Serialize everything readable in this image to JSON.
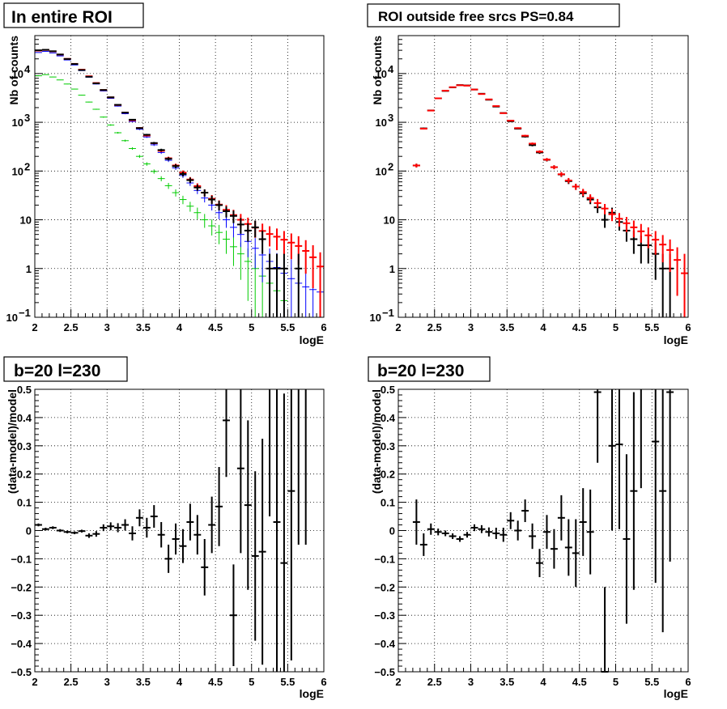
{
  "chart_data": [
    {
      "type": "scatter",
      "title": "In entire ROI",
      "xlabel": "logE",
      "ylabel": "Nb of counts",
      "xlim": [
        2,
        6
      ],
      "ylim": [
        0.1,
        60000
      ],
      "yscale": "log",
      "grid": true,
      "xticks": [
        "2",
        "2.5",
        "3",
        "3.5",
        "4",
        "4.5",
        "5",
        "5.5",
        "6"
      ],
      "yticks": [
        {
          "v": 0.1,
          "base": "10",
          "exp": "−1"
        },
        {
          "v": 1,
          "base": "1",
          "exp": ""
        },
        {
          "v": 10,
          "base": "10",
          "exp": ""
        },
        {
          "v": 100,
          "base": "10",
          "exp": "2"
        },
        {
          "v": 1000,
          "base": "10",
          "exp": "3"
        },
        {
          "v": 10000,
          "base": "10",
          "exp": "4"
        }
      ],
      "series": [
        {
          "color": "#00cc00",
          "x": [
            2.05,
            2.15,
            2.25,
            2.35,
            2.45,
            2.55,
            2.65,
            2.75,
            2.85,
            2.95,
            3.05,
            3.15,
            3.25,
            3.35,
            3.45,
            3.55,
            3.65,
            3.75,
            3.85,
            3.95,
            4.05,
            4.15,
            4.25,
            4.35,
            4.45,
            4.55,
            4.65,
            4.75,
            4.85,
            4.95,
            5.05,
            5.15,
            5.25,
            5.35,
            5.45
          ],
          "y": [
            9000,
            9500,
            8500,
            7400,
            6100,
            4800,
            3600,
            2600,
            1850,
            1280,
            880,
            610,
            420,
            290,
            200,
            140,
            98,
            70,
            50,
            36,
            26,
            19,
            14,
            10,
            7.5,
            5.5,
            4,
            2.8,
            2,
            1.4,
            1,
            0.7,
            0.5,
            0.35,
            0.22
          ]
        },
        {
          "color": "#0000ff",
          "x": [
            2.05,
            2.15,
            2.25,
            2.35,
            2.45,
            2.55,
            2.65,
            2.75,
            2.85,
            2.95,
            3.05,
            3.15,
            3.25,
            3.35,
            3.45,
            3.55,
            3.65,
            3.75,
            3.85,
            3.95,
            4.05,
            4.15,
            4.25,
            4.35,
            4.45,
            4.55,
            4.65,
            4.75,
            4.85,
            4.95,
            5.05,
            5.15,
            5.25,
            5.35,
            5.45,
            5.55,
            5.65,
            5.75,
            5.85,
            5.95
          ],
          "y": [
            27000,
            28500,
            26500,
            23000,
            19000,
            15000,
            11500,
            8400,
            6100,
            4400,
            3100,
            2150,
            1500,
            1040,
            720,
            500,
            345,
            240,
            166,
            116,
            81,
            57,
            40,
            28,
            20,
            14,
            10,
            7,
            5,
            3.6,
            2.6,
            1.9,
            1.4,
            1.05,
            0.8,
            0.62,
            0.5,
            0.42,
            0.37,
            0.33
          ]
        },
        {
          "color": "#ff0000",
          "x": [
            2.05,
            2.15,
            2.25,
            2.35,
            2.45,
            2.55,
            2.65,
            2.75,
            2.85,
            2.95,
            3.05,
            3.15,
            3.25,
            3.35,
            3.45,
            3.55,
            3.65,
            3.75,
            3.85,
            3.95,
            4.05,
            4.15,
            4.25,
            4.35,
            4.45,
            4.55,
            4.65,
            4.75,
            4.85,
            4.95,
            5.05,
            5.15,
            5.25,
            5.35,
            5.45,
            5.55,
            5.65,
            5.75,
            5.85,
            5.95
          ],
          "y": [
            29500,
            30500,
            28500,
            24500,
            20000,
            15800,
            12000,
            8800,
            6400,
            4600,
            3250,
            2260,
            1580,
            1100,
            765,
            535,
            372,
            260,
            183,
            130,
            93,
            67,
            49,
            36,
            27,
            20.5,
            16,
            12.5,
            10,
            8.2,
            6.9,
            5.9,
            5.1,
            4.5,
            3.9,
            3.4,
            2.9,
            2.3,
            1.7,
            1.1
          ]
        },
        {
          "color": "#000000",
          "x": [
            2.05,
            2.15,
            2.25,
            2.35,
            2.45,
            2.55,
            2.65,
            2.75,
            2.85,
            2.95,
            3.05,
            3.15,
            3.25,
            3.35,
            3.45,
            3.55,
            3.65,
            3.75,
            3.85,
            3.95,
            4.05,
            4.15,
            4.25,
            4.35,
            4.45,
            4.55,
            4.65,
            4.75,
            4.85,
            4.95,
            5.05,
            5.15,
            5.25,
            5.35,
            5.45,
            5.65
          ],
          "y": [
            30000,
            30700,
            28700,
            24600,
            19900,
            15700,
            11800,
            8600,
            6300,
            4600,
            3250,
            2280,
            1580,
            1130,
            760,
            555,
            375,
            270,
            178,
            126,
            87,
            65,
            46,
            36,
            26,
            20,
            15,
            12,
            8,
            6,
            7,
            4,
            1,
            1,
            1,
            1
          ]
        }
      ]
    },
    {
      "type": "scatter",
      "title": "ROI outside free srcs PS=0.84",
      "xlabel": "logE",
      "ylabel": "Nb of counts",
      "xlim": [
        2,
        6
      ],
      "ylim": [
        0.1,
        60000
      ],
      "yscale": "log",
      "grid": true,
      "xticks": [
        "2",
        "2.5",
        "3",
        "3.5",
        "4",
        "4.5",
        "5",
        "5.5",
        "6"
      ],
      "yticks": [
        {
          "v": 0.1,
          "base": "10",
          "exp": "−1"
        },
        {
          "v": 1,
          "base": "1",
          "exp": ""
        },
        {
          "v": 10,
          "base": "10",
          "exp": ""
        },
        {
          "v": 100,
          "base": "10",
          "exp": "2"
        },
        {
          "v": 1000,
          "base": "10",
          "exp": "3"
        },
        {
          "v": 10000,
          "base": "10",
          "exp": "4"
        }
      ],
      "series": [
        {
          "color": "#000000",
          "x": [
            2.25,
            2.35,
            2.45,
            2.55,
            2.65,
            2.75,
            2.85,
            2.95,
            3.05,
            3.15,
            3.25,
            3.35,
            3.45,
            3.55,
            3.65,
            3.75,
            3.85,
            3.95,
            4.05,
            4.15,
            4.25,
            4.35,
            4.45,
            4.55,
            4.65,
            4.75,
            4.85,
            4.95,
            5.05,
            5.15,
            5.25,
            5.35,
            5.45,
            5.55,
            5.65,
            5.75
          ],
          "y": [
            130,
            750,
            1750,
            3100,
            4400,
            5200,
            5800,
            5700,
            4700,
            3850,
            2900,
            2100,
            1550,
            1050,
            740,
            510,
            340,
            240,
            170,
            120,
            85,
            62,
            48,
            35,
            26,
            18,
            10,
            14,
            9,
            6,
            4,
            3,
            3,
            2,
            1,
            1
          ]
        },
        {
          "color": "#ff0000",
          "x": [
            2.25,
            2.35,
            2.45,
            2.55,
            2.65,
            2.75,
            2.85,
            2.95,
            3.05,
            3.15,
            3.25,
            3.35,
            3.45,
            3.55,
            3.65,
            3.75,
            3.85,
            3.95,
            4.05,
            4.15,
            4.25,
            4.35,
            4.45,
            4.55,
            4.65,
            4.75,
            4.85,
            4.95,
            5.05,
            5.15,
            5.25,
            5.35,
            5.45,
            5.55,
            5.65,
            5.75,
            5.85,
            5.95
          ],
          "y": [
            130,
            740,
            1740,
            3100,
            4450,
            5250,
            5750,
            5650,
            4700,
            3800,
            2950,
            2150,
            1540,
            1080,
            760,
            530,
            365,
            250,
            172,
            120,
            86,
            64,
            48,
            37,
            28,
            22,
            17,
            13,
            10.5,
            8.5,
            7,
            5.8,
            4.8,
            3.9,
            3.1,
            2.4,
            1.5,
            0.8
          ]
        }
      ]
    },
    {
      "type": "scatter",
      "title": "b=20 l=230",
      "xlabel": "logE",
      "ylabel": "(data-model)/model",
      "xlim": [
        2,
        6
      ],
      "ylim": [
        -0.5,
        0.5
      ],
      "grid": true,
      "xticks": [
        "2",
        "2.5",
        "3",
        "3.5",
        "4",
        "4.5",
        "5",
        "5.5",
        "6"
      ],
      "yticks": [
        "−0.5",
        "−0.4",
        "−0.3",
        "−0.2",
        "−0.1",
        "0",
        "0.1",
        "0.2",
        "0.3",
        "0.4",
        "0.5"
      ],
      "series": [
        {
          "color": "#000000",
          "x": [
            2.05,
            2.15,
            2.25,
            2.35,
            2.45,
            2.55,
            2.65,
            2.75,
            2.85,
            2.95,
            3.05,
            3.15,
            3.25,
            3.35,
            3.45,
            3.55,
            3.65,
            3.75,
            3.85,
            3.95,
            4.05,
            4.15,
            4.25,
            4.35,
            4.45,
            4.55,
            4.65,
            4.75,
            4.85,
            4.95,
            5.05,
            5.15,
            5.25,
            5.35,
            5.45,
            5.55,
            5.65,
            5.75
          ],
          "y": [
            0.02,
            0.005,
            0.01,
            0.0,
            -0.005,
            -0.008,
            -0.002,
            -0.018,
            -0.012,
            0.01,
            0.015,
            0.01,
            0.02,
            -0.01,
            0.045,
            0.01,
            0.05,
            -0.015,
            -0.1,
            -0.03,
            -0.055,
            0.03,
            -0.015,
            -0.13,
            0.02,
            0.085,
            0.39,
            -0.3,
            0.22,
            0.09,
            -0.09,
            -0.075,
            0.55,
            0.03,
            -0.115,
            0.14,
            0.55,
            0.55
          ],
          "err": [
            0.005,
            0.005,
            0.005,
            0.005,
            0.005,
            0.005,
            0.005,
            0.008,
            0.01,
            0.012,
            0.014,
            0.016,
            0.02,
            0.025,
            0.03,
            0.035,
            0.04,
            0.045,
            0.05,
            0.055,
            0.06,
            0.065,
            0.07,
            0.1,
            0.1,
            0.14,
            0.2,
            0.18,
            0.3,
            0.3,
            0.3,
            0.4,
            0.5,
            0.6,
            0.6,
            0.6,
            0.6,
            0.6
          ]
        }
      ]
    },
    {
      "type": "scatter",
      "title": "b=20 l=230",
      "xlabel": "logE",
      "ylabel": "(data-model)/model",
      "xlim": [
        2,
        6
      ],
      "ylim": [
        -0.5,
        0.5
      ],
      "grid": true,
      "xticks": [
        "2",
        "2.5",
        "3",
        "3.5",
        "4",
        "4.5",
        "5",
        "5.5",
        "6"
      ],
      "yticks": [
        "−0.5",
        "−0.4",
        "−0.3",
        "−0.2",
        "−0.1",
        "0",
        "0.1",
        "0.2",
        "0.3",
        "0.4",
        "0.5"
      ],
      "series": [
        {
          "color": "#000000",
          "x": [
            2.25,
            2.35,
            2.45,
            2.55,
            2.65,
            2.75,
            2.85,
            2.95,
            3.05,
            3.15,
            3.25,
            3.35,
            3.45,
            3.55,
            3.65,
            3.75,
            3.85,
            3.95,
            4.05,
            4.15,
            4.25,
            4.35,
            4.45,
            4.55,
            4.65,
            4.75,
            4.85,
            4.95,
            5.05,
            5.15,
            5.25,
            5.35,
            5.55,
            5.65,
            5.75
          ],
          "y": [
            0.03,
            -0.05,
            0.005,
            -0.005,
            -0.01,
            -0.02,
            -0.03,
            -0.015,
            0.01,
            0.005,
            -0.005,
            -0.01,
            -0.015,
            0.035,
            0.0,
            0.07,
            -0.02,
            -0.115,
            -0.005,
            -0.065,
            0.045,
            -0.06,
            -0.08,
            0.03,
            -0.005,
            0.49,
            -0.5,
            0.3,
            0.305,
            -0.03,
            0.14,
            0.55,
            0.315,
            0.14,
            0.49
          ],
          "err": [
            0.08,
            0.04,
            0.02,
            0.012,
            0.01,
            0.01,
            0.01,
            0.01,
            0.012,
            0.014,
            0.016,
            0.02,
            0.025,
            0.03,
            0.035,
            0.04,
            0.045,
            0.05,
            0.06,
            0.07,
            0.08,
            0.1,
            0.12,
            0.12,
            0.15,
            0.25,
            0.3,
            0.3,
            0.3,
            0.3,
            0.35,
            0.4,
            0.5,
            0.5,
            0.6
          ]
        }
      ]
    }
  ]
}
